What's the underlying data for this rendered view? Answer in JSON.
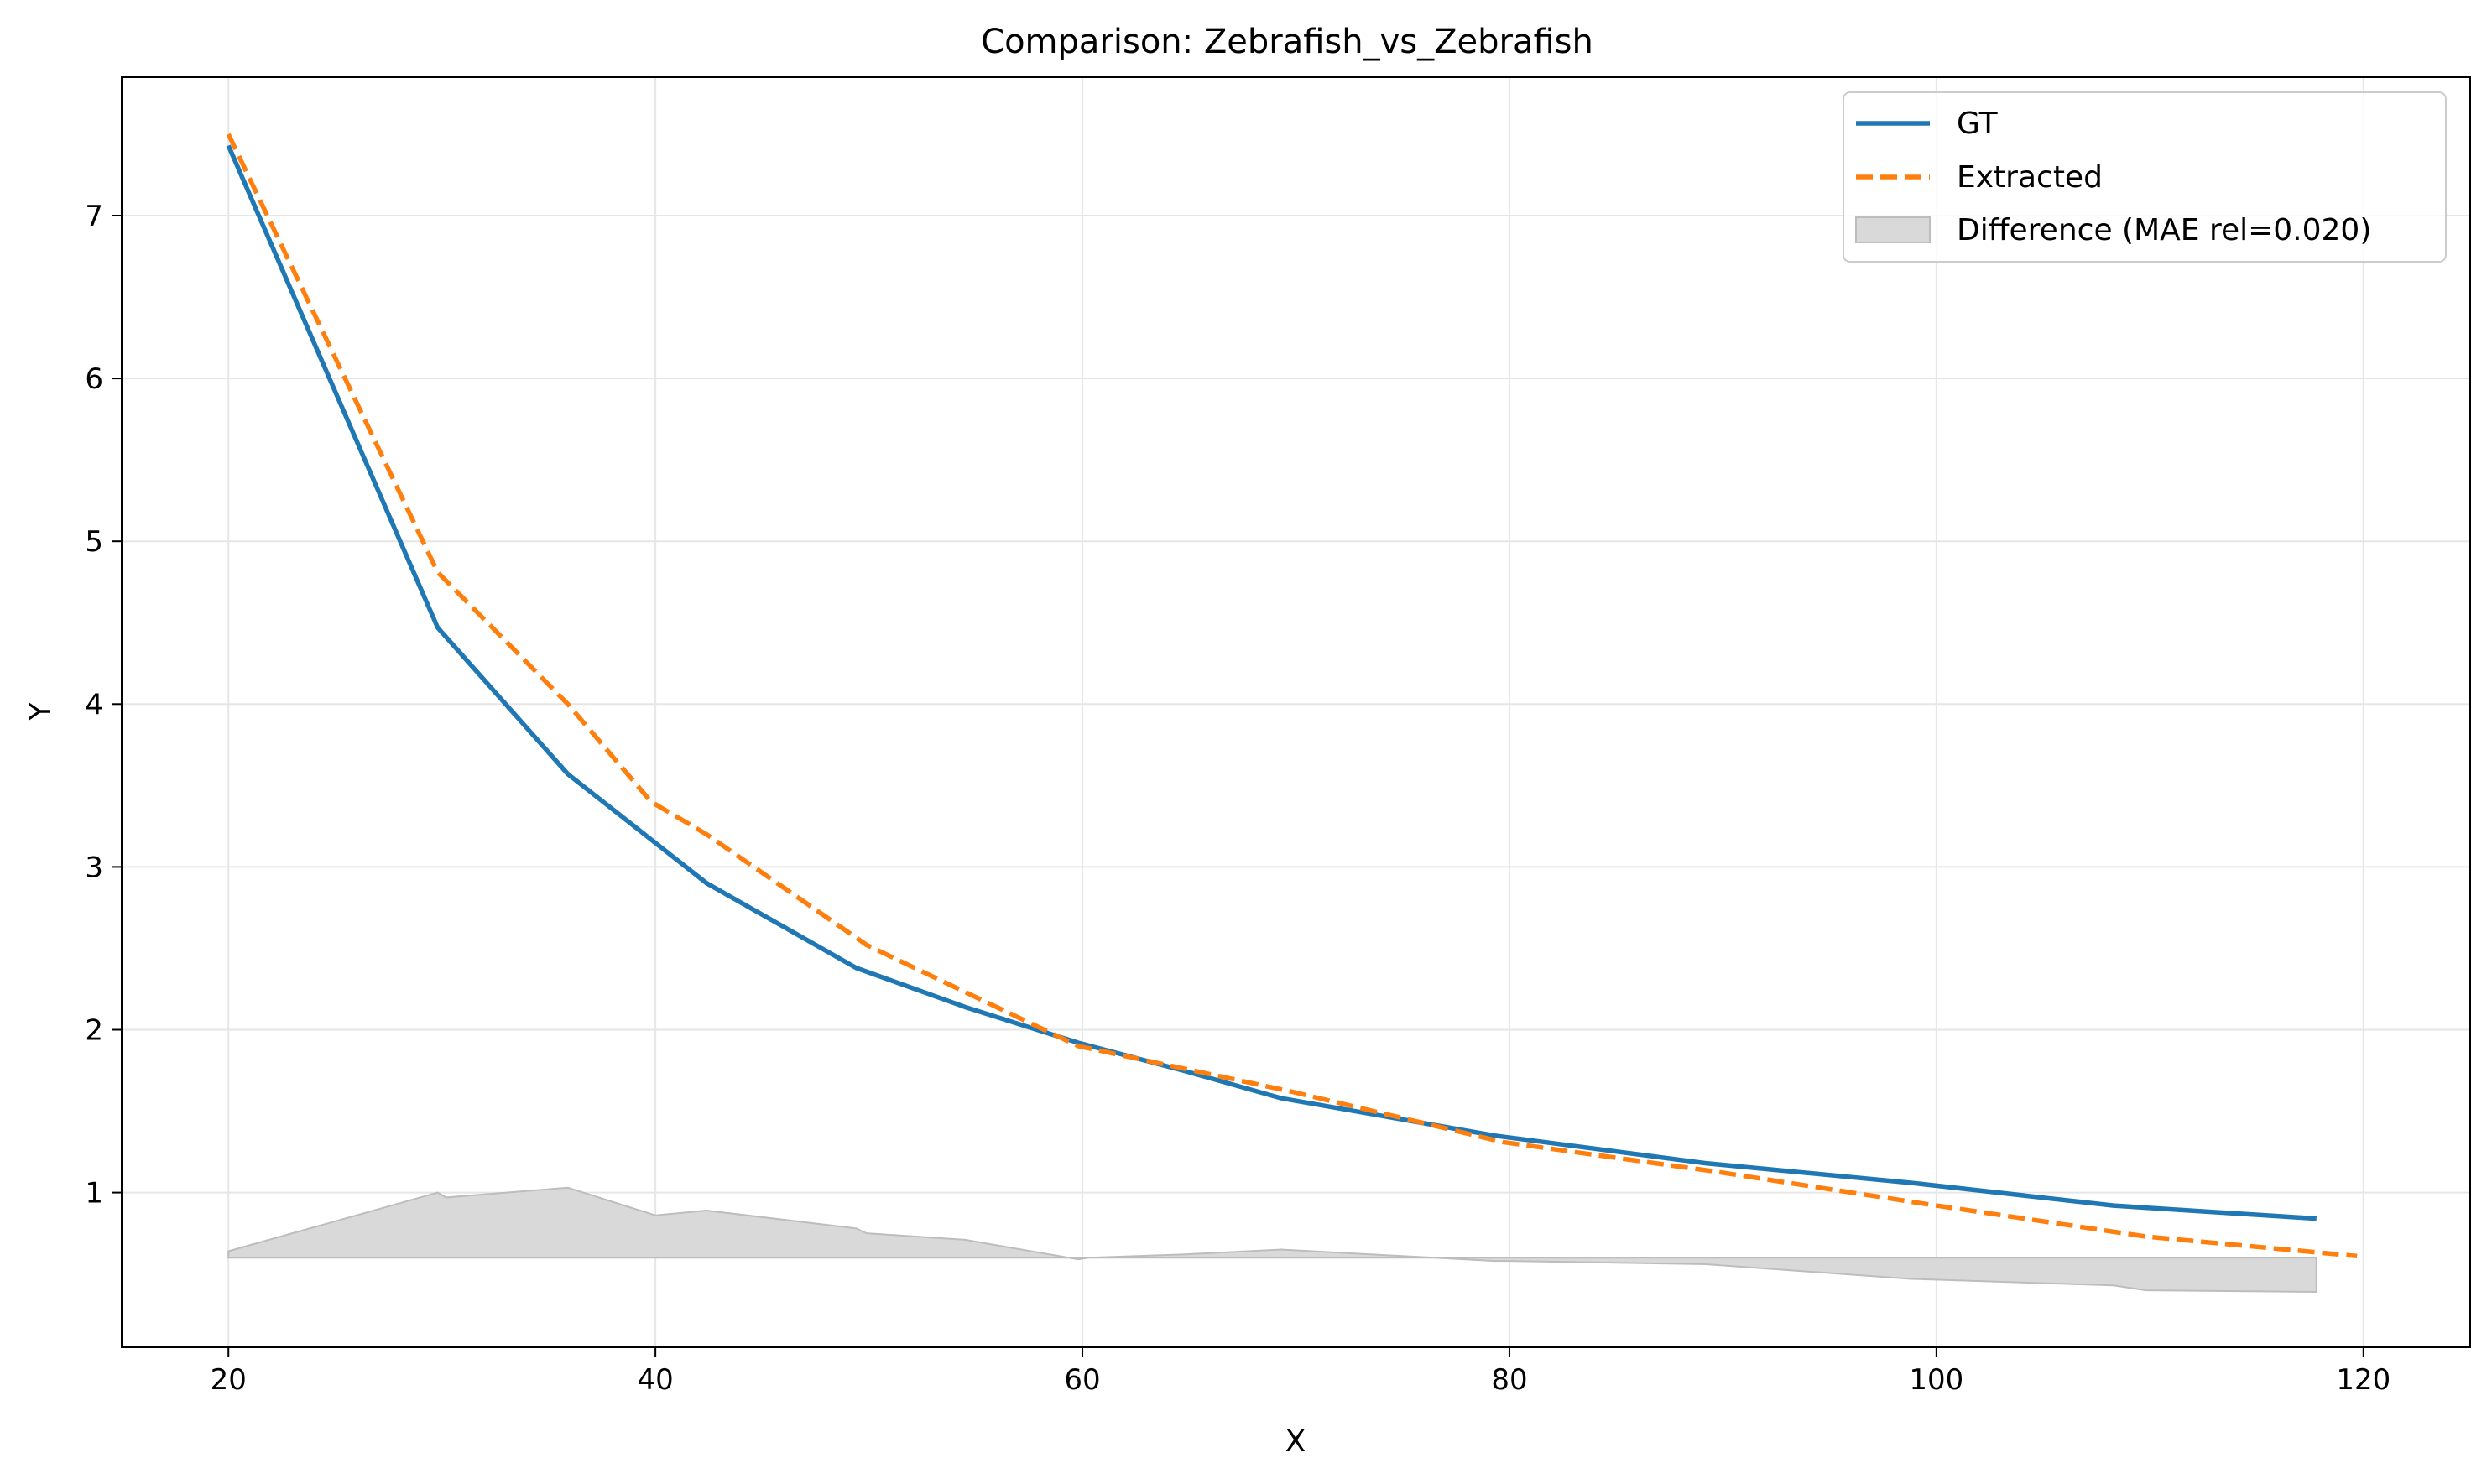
{
  "chart_data": {
    "type": "line",
    "title": "Comparison: Zebrafish_vs_Zebrafish",
    "xlabel": "X",
    "ylabel": "Y",
    "xlim": [
      15,
      125
    ],
    "ylim": [
      0.05,
      7.85
    ],
    "xticks": [
      20,
      40,
      60,
      80,
      100,
      120
    ],
    "yticks": [
      1,
      2,
      3,
      4,
      5,
      6,
      7
    ],
    "grid": true,
    "legend_position": "top-right",
    "series": [
      {
        "name": "GT",
        "style": "solid",
        "color": "#1f77b4",
        "x": [
          20,
          29.8,
          35.9,
          42.4,
          49.4,
          54.5,
          59.8,
          64.7,
          69.3,
          79.3,
          89.2,
          98.8,
          108.3,
          117.8
        ],
        "y": [
          7.43,
          4.47,
          3.57,
          2.9,
          2.38,
          2.14,
          1.92,
          1.75,
          1.58,
          1.35,
          1.18,
          1.06,
          0.92,
          0.84
        ]
      },
      {
        "name": "Extracted",
        "style": "dashed",
        "color": "#ff7f0e",
        "x": [
          20,
          29.8,
          35.9,
          39.8,
          42.4,
          49.9,
          59.8,
          69.8,
          79.7,
          89.6,
          99.5,
          109.8,
          119.7
        ],
        "y": [
          7.5,
          4.81,
          4.0,
          3.4,
          3.2,
          2.52,
          1.9,
          1.62,
          1.31,
          1.13,
          0.93,
          0.73,
          0.61
        ]
      },
      {
        "name": "Difference (MAE rel=0.020)",
        "style": "fill",
        "color": "#d9d9d9",
        "baseline": 0.6,
        "x": [
          20,
          29.8,
          30.2,
          35.9,
          40.0,
          42.4,
          49.4,
          49.9,
          54.5,
          59.8,
          60.3,
          64.7,
          69.3,
          75.0,
          79.3,
          80.0,
          89.2,
          98.8,
          108.3,
          109.8,
          117.8
        ],
        "y": [
          0.64,
          1.0,
          0.97,
          1.03,
          0.86,
          0.89,
          0.78,
          0.75,
          0.71,
          0.59,
          0.6,
          0.62,
          0.65,
          0.61,
          0.58,
          0.58,
          0.56,
          0.47,
          0.43,
          0.4,
          0.39
        ]
      }
    ]
  },
  "colors": {
    "gt": "#1f77b4",
    "extracted": "#ff7f0e",
    "difference_fill": "#d9d9d9",
    "grid": "#e6e6e6"
  }
}
